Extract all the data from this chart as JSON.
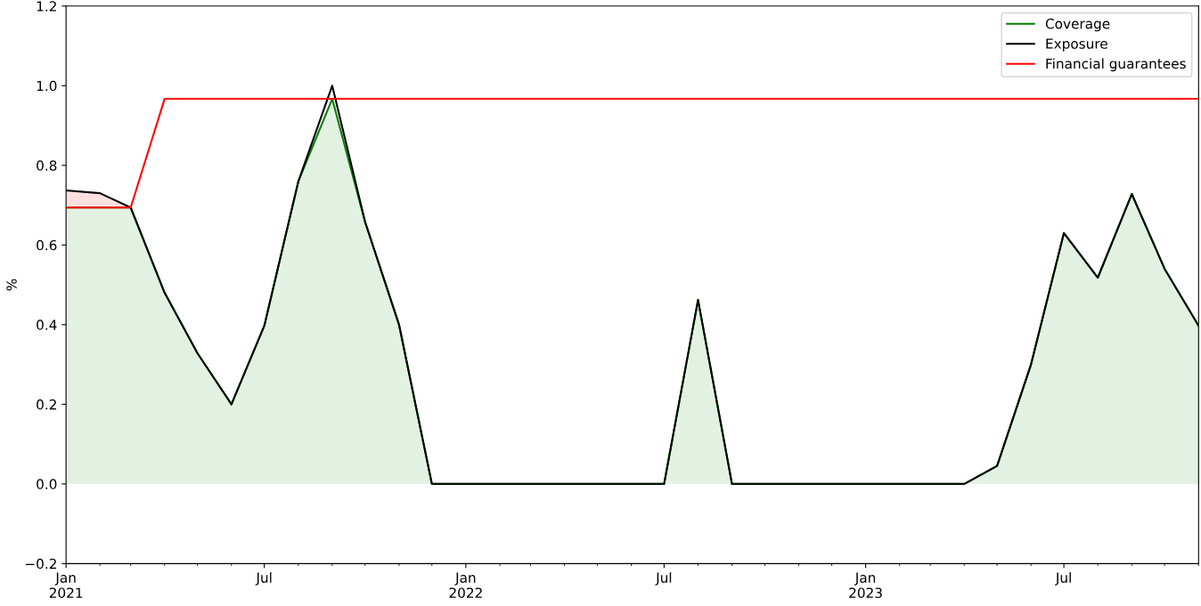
{
  "chart_data": {
    "type": "line",
    "ylabel": "%",
    "x": [
      "2021-01",
      "2021-02",
      "2021-03",
      "2021-04",
      "2021-05",
      "2021-06",
      "2021-07",
      "2021-08",
      "2021-09",
      "2021-10",
      "2021-11",
      "2021-12",
      "2022-01",
      "2022-02",
      "2022-03",
      "2022-04",
      "2022-05",
      "2022-06",
      "2022-07",
      "2022-08",
      "2022-09",
      "2022-10",
      "2022-11",
      "2022-12",
      "2023-01",
      "2023-02",
      "2023-03",
      "2023-04",
      "2023-05",
      "2023-06",
      "2023-07",
      "2023-08",
      "2023-09",
      "2023-10",
      "2023-11"
    ],
    "series": [
      {
        "name": "Coverage",
        "type": "area",
        "color": "#008000",
        "values": [
          0.694,
          0.694,
          0.694,
          0.48,
          0.328,
          0.2,
          0.397,
          0.759,
          0.967,
          0.658,
          0.4,
          0,
          0,
          0,
          0,
          0,
          0,
          0,
          0,
          0.462,
          0,
          0,
          0,
          0,
          0,
          0,
          0,
          0,
          0.045,
          0.3,
          0.63,
          0.518,
          0.728,
          0.54,
          0.397
        ]
      },
      {
        "name": "Exposure",
        "type": "line",
        "color": "#000000",
        "values": [
          0.737,
          0.73,
          0.694,
          0.48,
          0.328,
          0.2,
          0.397,
          0.759,
          1.0,
          0.658,
          0.4,
          0,
          0,
          0,
          0,
          0,
          0,
          0,
          0,
          0.462,
          0,
          0,
          0,
          0,
          0,
          0,
          0,
          0,
          0.045,
          0.3,
          0.63,
          0.518,
          0.728,
          0.54,
          0.397
        ],
        "lower": [
          0.694,
          0.694,
          0.694,
          null,
          null,
          null,
          null,
          null,
          null,
          null,
          null,
          null,
          null,
          null,
          null,
          null,
          null,
          null,
          null,
          null,
          null,
          null,
          null,
          null,
          null,
          null,
          null,
          null,
          null,
          null,
          null,
          null,
          null,
          null,
          null
        ],
        "upper": [
          0.737,
          0.73,
          0.694,
          null,
          null,
          null,
          null,
          null,
          null,
          null,
          null,
          null,
          null,
          null,
          null,
          null,
          null,
          null,
          null,
          null,
          null,
          null,
          null,
          null,
          null,
          null,
          null,
          null,
          null,
          null,
          null,
          null,
          null,
          null,
          null
        ]
      },
      {
        "name": "Financial guarantees",
        "color": "#ff0000",
        "values": [
          0.694,
          0.694,
          0.694,
          0.967,
          0.967,
          0.967,
          0.967,
          0.967,
          0.967,
          0.967,
          0.967,
          0.967,
          0.967,
          0.967,
          0.967,
          0.967,
          0.967,
          0.967,
          0.967,
          0.967,
          0.967,
          0.967,
          0.967,
          0.967,
          0.967,
          0.967,
          0.967,
          0.967,
          0.967,
          0.967,
          0.967,
          0.967,
          0.967,
          0.967,
          0.967
        ]
      }
    ],
    "xlim": [
      "2021-01",
      "2023-11"
    ],
    "xticks": [
      {
        "value": "2021-01",
        "label": "Jan\n2021"
      },
      {
        "value": "2021-07",
        "label": "Jul"
      },
      {
        "value": "2022-01",
        "label": "Jan\n2022"
      },
      {
        "value": "2022-07",
        "label": "Jul"
      },
      {
        "value": "2023-01",
        "label": "Jan\n2023"
      },
      {
        "value": "2023-07",
        "label": "Jul"
      }
    ],
    "ylim": [
      -0.2,
      1.2
    ],
    "yticks": [
      {
        "value": -0.2,
        "label": "−0.2"
      },
      {
        "value": 0,
        "label": "0.0"
      },
      {
        "value": 0.2,
        "label": "0.2"
      },
      {
        "value": 0.4,
        "label": "0.4"
      },
      {
        "value": 0.6,
        "label": "0.6"
      },
      {
        "value": 0.8,
        "label": "0.8"
      },
      {
        "value": 1.0,
        "label": "1.0"
      },
      {
        "value": 1.2,
        "label": "1.2"
      }
    ],
    "legend": "top right",
    "grid": false
  }
}
